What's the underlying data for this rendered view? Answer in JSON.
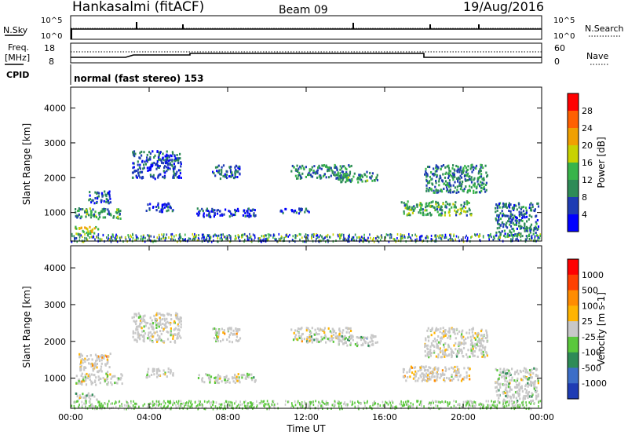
{
  "header": {
    "station": "Hankasalmi (fitACF)",
    "beam": "Beam 09",
    "date": "19/Aug/2016"
  },
  "top_panels": {
    "nsky_label": "N.Sky",
    "nsearch_label": "N.Search",
    "n_tick_hi": "10^5",
    "n_tick_lo": "10^0",
    "freq_label": "Freq.",
    "freq_unit": "[MHz]",
    "freq_ticks": [
      "18",
      "8"
    ],
    "nave_label": "Nave",
    "nave_ticks": [
      "60",
      "0"
    ],
    "cpid_label": "CPID",
    "cpid_text": "normal (fast stereo) 153"
  },
  "chart_data": [
    {
      "type": "heatmap",
      "name": "power",
      "ylabel": "Slant Range [km]",
      "xlabel": "",
      "ylim": [
        180,
        4600
      ],
      "yticks": [
        1000,
        2000,
        3000,
        4000
      ],
      "xticks": [
        "00:00",
        "04:00",
        "08:00",
        "12:00",
        "16:00",
        "20:00",
        "00:00"
      ],
      "colorbar": {
        "label": "Power [dB]",
        "ticks": [
          "4",
          "8",
          "12",
          "16",
          "20",
          "24",
          "28"
        ],
        "colors": [
          "#0000ff",
          "#1e3cb4",
          "#2e8b57",
          "#38b44a",
          "#c8d200",
          "#f0a000",
          "#ff6000",
          "#ff0000"
        ]
      },
      "regions": [
        {
          "t0": 0.2,
          "t1": 2.6,
          "r0": 850,
          "r1": 1150,
          "level": 0.35
        },
        {
          "t0": 0.8,
          "t1": 2.0,
          "r0": 1300,
          "r1": 1650,
          "level": 0.2
        },
        {
          "t0": 0.2,
          "t1": 1.4,
          "r0": 400,
          "r1": 620,
          "level": 0.55
        },
        {
          "t0": 3.1,
          "t1": 5.6,
          "r0": 2000,
          "r1": 2800,
          "level": 0.2
        },
        {
          "t0": 3.8,
          "t1": 5.2,
          "r0": 1050,
          "r1": 1300,
          "level": 0.15
        },
        {
          "t0": 6.4,
          "t1": 9.4,
          "r0": 900,
          "r1": 1150,
          "level": 0.15
        },
        {
          "t0": 7.2,
          "t1": 8.6,
          "r0": 2000,
          "r1": 2400,
          "level": 0.2
        },
        {
          "t0": 11.2,
          "t1": 14.3,
          "r0": 2000,
          "r1": 2400,
          "level": 0.3
        },
        {
          "t0": 13.6,
          "t1": 15.6,
          "r0": 1900,
          "r1": 2200,
          "level": 0.35
        },
        {
          "t0": 10.6,
          "t1": 12.2,
          "r0": 1000,
          "r1": 1150,
          "level": 0.1
        },
        {
          "t0": 16.8,
          "t1": 20.4,
          "r0": 950,
          "r1": 1350,
          "level": 0.4
        },
        {
          "t0": 18.0,
          "t1": 21.2,
          "r0": 1600,
          "r1": 2400,
          "level": 0.3
        },
        {
          "t0": 21.6,
          "t1": 23.8,
          "r0": 350,
          "r1": 1300,
          "level": 0.25
        }
      ]
    },
    {
      "type": "heatmap",
      "name": "velocity",
      "ylabel": "Slant Range [km]",
      "xlabel": "Time UT",
      "ylim": [
        180,
        4600
      ],
      "yticks": [
        1000,
        2000,
        3000,
        4000
      ],
      "xticks": [
        "00:00",
        "04:00",
        "08:00",
        "12:00",
        "16:00",
        "20:00",
        "00:00"
      ],
      "colorbar": {
        "label": "Velocity [m s-1]",
        "ticks": [
          "1000",
          "500",
          "100",
          "25",
          "-25",
          "-100",
          "-500",
          "-1000"
        ],
        "colors": [
          "#1e3cb4",
          "#3c6ec8",
          "#2e8b57",
          "#5ac83c",
          "#c8c8c8",
          "#ffb400",
          "#ff8c00",
          "#ff4000",
          "#ff0000"
        ]
      },
      "regions": [
        {
          "t0": 0.2,
          "t1": 2.6,
          "r0": 850,
          "r1": 1150,
          "level": 0.5
        },
        {
          "t0": 0.4,
          "t1": 2.0,
          "r0": 1200,
          "r1": 1700,
          "level": 0.65
        },
        {
          "t0": 0.2,
          "t1": 1.4,
          "r0": 400,
          "r1": 620,
          "level": 0.4
        },
        {
          "t0": 3.1,
          "t1": 5.6,
          "r0": 2000,
          "r1": 2800,
          "level": 0.5
        },
        {
          "t0": 3.8,
          "t1": 5.2,
          "r0": 1050,
          "r1": 1300,
          "level": 0.5
        },
        {
          "t0": 6.4,
          "t1": 9.4,
          "r0": 900,
          "r1": 1150,
          "level": 0.5
        },
        {
          "t0": 7.2,
          "t1": 8.6,
          "r0": 2000,
          "r1": 2400,
          "level": 0.5
        },
        {
          "t0": 11.2,
          "t1": 14.3,
          "r0": 2000,
          "r1": 2400,
          "level": 0.5
        },
        {
          "t0": 13.6,
          "t1": 15.6,
          "r0": 1900,
          "r1": 2200,
          "level": 0.35
        },
        {
          "t0": 16.8,
          "t1": 20.4,
          "r0": 950,
          "r1": 1350,
          "level": 0.6
        },
        {
          "t0": 18.0,
          "t1": 21.2,
          "r0": 1600,
          "r1": 2400,
          "level": 0.5
        },
        {
          "t0": 21.6,
          "t1": 23.8,
          "r0": 350,
          "r1": 1300,
          "level": 0.45
        }
      ]
    }
  ]
}
